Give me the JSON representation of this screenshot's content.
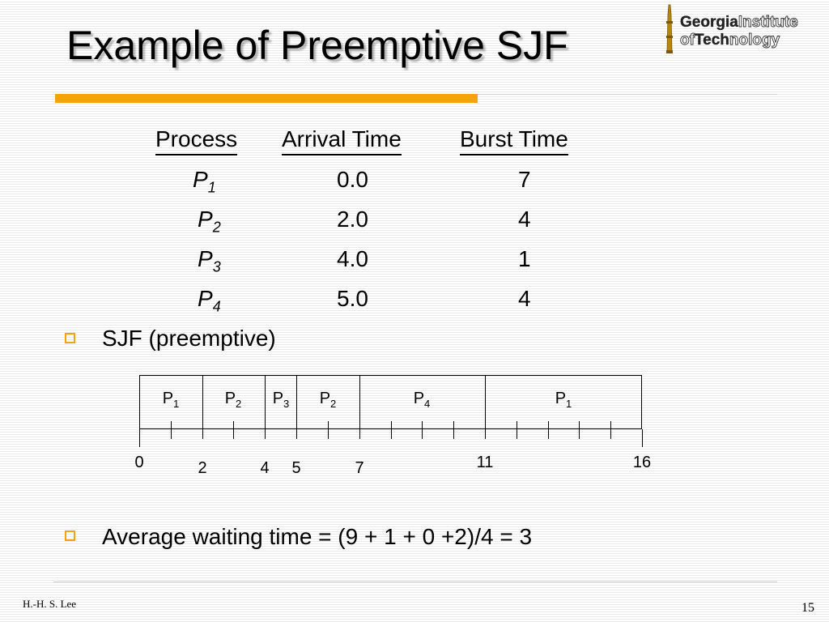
{
  "slide": {
    "title": "Example of Preemptive SJF",
    "accent_color": "#f5a20d",
    "bullet_color": "#f5a20d"
  },
  "logo": {
    "line1_bold": "Georgia",
    "line1_rest": "Institute",
    "line2_pre": "of",
    "line2_bold": "Tech",
    "line2_rest": "nology"
  },
  "table": {
    "headers": [
      "Process",
      "Arrival Time",
      "Burst Time"
    ],
    "rows": [
      {
        "process": "P",
        "sub": "1",
        "arrival": "0.0",
        "burst": "7"
      },
      {
        "process": "P",
        "sub": "2",
        "arrival": "2.0",
        "burst": "4"
      },
      {
        "process": "P",
        "sub": "3",
        "arrival": "4.0",
        "burst": "1"
      },
      {
        "process": "P",
        "sub": "4",
        "arrival": "5.0",
        "burst": "4"
      }
    ]
  },
  "bullets": [
    "SJF (preemptive)",
    "Average waiting time = (9 + 1 + 0 +2)/4 = 3"
  ],
  "gantt": {
    "start": 0,
    "end": 16,
    "segments": [
      {
        "name": "P",
        "sub": "1",
        "start": 0,
        "end": 2
      },
      {
        "name": "P",
        "sub": "2",
        "start": 2,
        "end": 4
      },
      {
        "name": "P",
        "sub": "3",
        "start": 4,
        "end": 5
      },
      {
        "name": "P",
        "sub": "2",
        "start": 5,
        "end": 7
      },
      {
        "name": "P",
        "sub": "4",
        "start": 7,
        "end": 11
      },
      {
        "name": "P",
        "sub": "1",
        "start": 11,
        "end": 16
      }
    ],
    "labels": [
      {
        "time": 0,
        "text": "0",
        "row": "high"
      },
      {
        "time": 2,
        "text": "2",
        "row": "low"
      },
      {
        "time": 4,
        "text": "4",
        "row": "low"
      },
      {
        "time": 5,
        "text": "5",
        "row": "low"
      },
      {
        "time": 7,
        "text": "7",
        "row": "low"
      },
      {
        "time": 11,
        "text": "11",
        "row": "high"
      },
      {
        "time": 16,
        "text": "16",
        "row": "high"
      }
    ]
  },
  "footer": {
    "author": "H.-H. S. Lee",
    "page": "15"
  }
}
